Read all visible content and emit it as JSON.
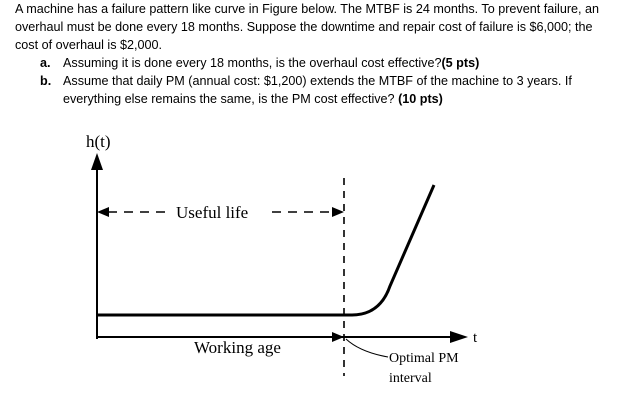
{
  "question": {
    "intro": "A machine has a failure pattern like curve in Figure below. The MTBF is 24 months. To prevent failure, an overhaul must be done every 18 months. Suppose the downtime and repair cost of failure is $6,000;  the cost of overhaul is $2,000.",
    "items": [
      {
        "marker": "a.",
        "text": "Assuming it is done every 18 months, is the overhaul cost effective?",
        "points": "(5 pts)"
      },
      {
        "marker": "b.",
        "text": "Assume that daily PM (annual cost: $1,200)  extends the MTBF of the machine to 3 years. If everything else remains the same, is the PM cost effective?",
        "points": "(10 pts)"
      }
    ]
  },
  "figure": {
    "y_axis_label": "h(t)",
    "x_axis_label": "t",
    "useful_life_label": "Useful life",
    "working_age_label": "Working age",
    "pm_label_line1": "Optimal PM",
    "pm_label_line2": "interval"
  }
}
